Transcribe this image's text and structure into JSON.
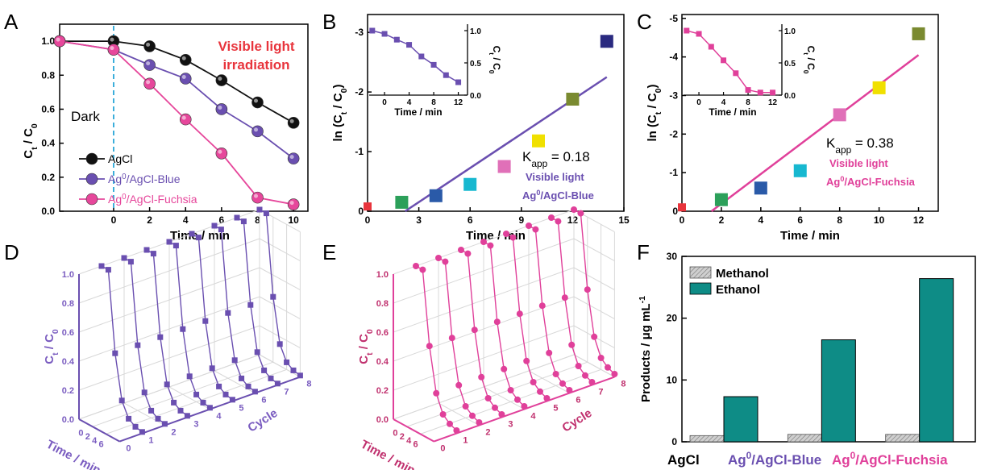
{
  "chart_data": [
    {
      "panel": "A",
      "type": "line",
      "xlabel": "Time / min",
      "ylabel": "Ct / C0",
      "xticks": [
        "0",
        "2",
        "4",
        "6",
        "8",
        "10"
      ],
      "yticks": [
        "0.0",
        "0.2",
        "0.4",
        "0.6",
        "0.8",
        "1.0"
      ],
      "ylim": [
        0,
        1.1
      ],
      "xlim": [
        -3.0,
        10.8
      ],
      "annotation": "Visible light irradiation",
      "annotation_color": "#e8343c",
      "dark_label": "Dark",
      "series": [
        {
          "name": "AgCl",
          "color": "#111111",
          "x": [
            -3,
            0,
            2,
            4,
            6,
            8,
            10
          ],
          "y": [
            1.0,
            1.0,
            0.97,
            0.89,
            0.77,
            0.64,
            0.52
          ]
        },
        {
          "name": "Ag0/AgCl-Blue",
          "color": "#6a4fb0",
          "x": [
            -3,
            0,
            2,
            4,
            6,
            8,
            10
          ],
          "y": [
            1.0,
            0.95,
            0.86,
            0.78,
            0.6,
            0.47,
            0.31
          ]
        },
        {
          "name": "Ag0/AgCl-Fuchsia",
          "color": "#e6479b",
          "x": [
            -3,
            0,
            2,
            4,
            6,
            8,
            10
          ],
          "y": [
            1.0,
            0.95,
            0.75,
            0.54,
            0.34,
            0.08,
            0.04
          ]
        }
      ]
    },
    {
      "panel": "B",
      "type": "scatter",
      "xlabel": "Time / min",
      "ylabel": "ln (Ct / C0)",
      "xticks": [
        "0",
        "3",
        "6",
        "9",
        "12",
        "15"
      ],
      "yticks": [
        "0",
        "-1",
        "-2",
        "-3"
      ],
      "xlim": [
        0,
        15
      ],
      "ylim": [
        0,
        -3.3
      ],
      "kapp": "0.18",
      "legend_lines": [
        "Visible light",
        "Ag0/AgCl-Blue"
      ],
      "fit_color": "#6a4fb0",
      "fit": {
        "x": [
          2.2,
          14
        ],
        "y": [
          0,
          -2.25
        ]
      },
      "points": [
        {
          "x": 0,
          "y": -0.08,
          "color": "#e8343c"
        },
        {
          "x": 2,
          "y": -0.15,
          "color": "#2ca05a"
        },
        {
          "x": 4,
          "y": -0.26,
          "color": "#2a5aa8"
        },
        {
          "x": 6,
          "y": -0.45,
          "color": "#17b8d0"
        },
        {
          "x": 8,
          "y": -0.75,
          "color": "#e070b8"
        },
        {
          "x": 10,
          "y": -1.18,
          "color": "#f0e000"
        },
        {
          "x": 12,
          "y": -1.88,
          "color": "#7a8a30"
        },
        {
          "x": 14,
          "y": -2.85,
          "color": "#2a2a80"
        }
      ],
      "inset": {
        "xlabel": "Time / min",
        "ylabel": "Ct / C0",
        "xticks": [
          "0",
          "4",
          "8",
          "12"
        ],
        "yticks": [
          "0.0",
          "0.5",
          "1.0"
        ],
        "x": [
          -2,
          0,
          2,
          4,
          6,
          8,
          10,
          12
        ],
        "y": [
          1.0,
          0.95,
          0.86,
          0.78,
          0.6,
          0.47,
          0.31,
          0.2
        ]
      }
    },
    {
      "panel": "C",
      "type": "scatter",
      "xlabel": "Time / min",
      "ylabel": "ln (Ct / C0)",
      "xticks": [
        "0",
        "2",
        "4",
        "6",
        "8",
        "10",
        "12"
      ],
      "yticks": [
        "0",
        "-1",
        "-2",
        "-3",
        "-4",
        "-5"
      ],
      "xlim": [
        0,
        13
      ],
      "ylim": [
        0,
        -5.1
      ],
      "kapp": "0.38",
      "legend_lines": [
        "Visible light",
        "Ag0/AgCl-Fuchsia"
      ],
      "fit_color": "#e0409a",
      "fit": {
        "x": [
          1.5,
          12
        ],
        "y": [
          0,
          -4.05
        ]
      },
      "points": [
        {
          "x": 0,
          "y": -0.1,
          "color": "#e8343c"
        },
        {
          "x": 2,
          "y": -0.3,
          "color": "#2ca05a"
        },
        {
          "x": 4,
          "y": -0.6,
          "color": "#2a5aa8"
        },
        {
          "x": 6,
          "y": -1.05,
          "color": "#17b8d0"
        },
        {
          "x": 8,
          "y": -2.5,
          "color": "#e070b8"
        },
        {
          "x": 10,
          "y": -3.2,
          "color": "#f0e000"
        },
        {
          "x": 12,
          "y": -4.6,
          "color": "#7a8a30"
        }
      ],
      "inset": {
        "xlabel": "Time / min",
        "ylabel": "Ct / C0",
        "xticks": [
          "0",
          "4",
          "8",
          "12"
        ],
        "yticks": [
          "0.0",
          "0.5",
          "1.0"
        ],
        "x": [
          -2,
          0,
          2,
          4,
          6,
          8,
          10,
          12
        ],
        "y": [
          1.0,
          0.95,
          0.75,
          0.54,
          0.34,
          0.08,
          0.04,
          0.04
        ]
      }
    },
    {
      "panel": "D",
      "type": "line",
      "xlabel": "Time / min",
      "ylabel": "Ct / C0",
      "zlabel": "Cycle",
      "color": "#6a4fb0",
      "label_color": "#7a5cc0",
      "zticks": [
        "0.0",
        "0.2",
        "0.4",
        "0.6",
        "0.8",
        "1.0"
      ],
      "xticks": [
        "0",
        "2",
        "4",
        "6"
      ],
      "cticks": [
        "0",
        "1",
        "2",
        "3",
        "4",
        "5",
        "6",
        "7",
        "8"
      ],
      "x": [
        -2,
        0,
        2,
        4,
        6,
        8,
        10
      ],
      "y": [
        1.0,
        1.0,
        0.45,
        0.15,
        0.05,
        0.02,
        0.01
      ],
      "cycles": 8
    },
    {
      "panel": "E",
      "type": "line",
      "xlabel": "Time / min",
      "ylabel": "Ct / C0",
      "zlabel": "Cycle",
      "color": "#e0409a",
      "label_color": "#c0306e",
      "zticks": [
        "0.0",
        "0.2",
        "0.4",
        "0.6",
        "0.8",
        "1.0"
      ],
      "xticks": [
        "0",
        "2",
        "4",
        "6"
      ],
      "cticks": [
        "0",
        "1",
        "2",
        "3",
        "4",
        "5",
        "6",
        "7",
        "8"
      ],
      "x": [
        -2,
        0,
        2,
        4,
        6,
        8,
        10
      ],
      "y": [
        1.0,
        1.0,
        0.5,
        0.2,
        0.08,
        0.04,
        0.02
      ],
      "cycles": 8
    },
    {
      "panel": "F",
      "type": "bar",
      "ylabel": "Products / μg mL-1",
      "ylim": [
        0,
        30
      ],
      "yticks": [
        "0",
        "10",
        "20",
        "30"
      ],
      "categories": [
        "AgCl",
        "Ag0/AgCl-Blue",
        "Ag0/AgCl-Fuchsia"
      ],
      "category_colors": [
        "#000000",
        "#6a4fb0",
        "#e0409a"
      ],
      "series": [
        {
          "name": "Methanol",
          "color": "#bbbbbb",
          "values": [
            1.0,
            1.2,
            1.2
          ]
        },
        {
          "name": "Ethanol",
          "color": "#0e8c86",
          "values": [
            7.3,
            16.5,
            26.4
          ]
        }
      ]
    }
  ],
  "panel_labels": [
    "A",
    "B",
    "C",
    "D",
    "E",
    "F"
  ]
}
